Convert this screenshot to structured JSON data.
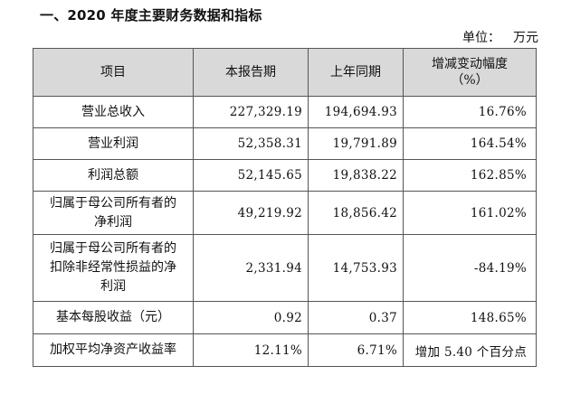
{
  "heading": "一、2020 年度主要财务数据和指标",
  "unit": {
    "label": "单位：",
    "value": "万元"
  },
  "table": {
    "headers": [
      "项目",
      "本报告期",
      "上年同期",
      "增减变动幅度",
      "（%）"
    ],
    "rows": [
      {
        "metric_lines": [
          "营业总收入"
        ],
        "current": "227,329.19",
        "prior": "194,694.93",
        "change": "16.76%"
      },
      {
        "metric_lines": [
          "营业利润"
        ],
        "current": "52,358.31",
        "prior": "19,791.89",
        "change": "164.54%"
      },
      {
        "metric_lines": [
          "利润总额"
        ],
        "current": "52,145.65",
        "prior": "19,838.22",
        "change": "162.85%"
      },
      {
        "metric_lines": [
          "归属于母公司所有者的",
          "净利润"
        ],
        "current": "49,219.92",
        "prior": "18,856.42",
        "change": "161.02%"
      },
      {
        "metric_lines": [
          "归属于母公司所有者的",
          "扣除非经常性损益的净",
          "利润"
        ],
        "current": "2,331.94",
        "prior": "14,753.93",
        "change": "-84.19%"
      },
      {
        "metric_lines": [
          "基本每股收益（元）"
        ],
        "current": "0.92",
        "prior": "0.37",
        "change": "148.65%"
      },
      {
        "metric_lines": [
          "加权平均净资产收益率"
        ],
        "current": "12.11%",
        "prior": "6.71%",
        "change": "增加 5.40 个百分点"
      }
    ]
  },
  "colors": {
    "header_background": "#d9d9d9",
    "border": "#555555",
    "text": "#111111"
  }
}
